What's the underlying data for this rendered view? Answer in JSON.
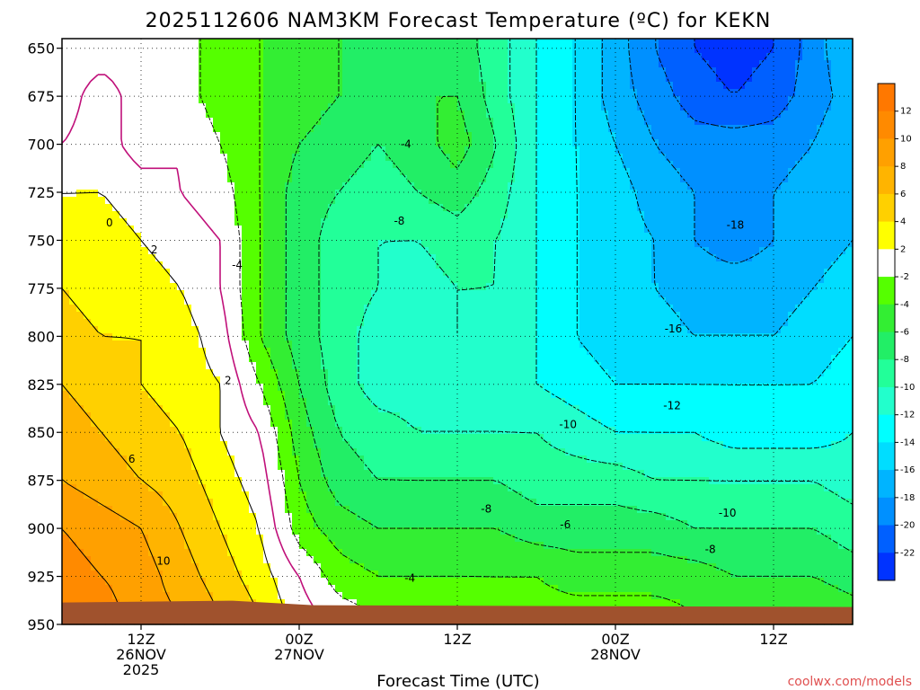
{
  "chart_data": {
    "type": "heatmap",
    "subtype": "filled-contour time-height cross section",
    "title": "2025112606 NAM3KM Forecast Temperature (ºC) for KEKN",
    "xlabel": "Forecast Time (UTC)",
    "ylabel": "",
    "x_axis": {
      "units": "hours since 2025-11-26 00Z",
      "xlim": [
        6,
        66
      ],
      "ticks": [
        {
          "x": 12,
          "lines": [
            "12Z",
            "26NOV",
            "2025"
          ]
        },
        {
          "x": 24,
          "lines": [
            "00Z",
            "27NOV"
          ]
        },
        {
          "x": 36,
          "lines": [
            "12Z"
          ]
        },
        {
          "x": 48,
          "lines": [
            "00Z",
            "28NOV"
          ]
        },
        {
          "x": 60,
          "lines": [
            "12Z"
          ]
        }
      ]
    },
    "y_axis": {
      "units": "hPa",
      "ylim": [
        950,
        645
      ],
      "ticks": [
        650,
        675,
        700,
        725,
        750,
        775,
        800,
        825,
        850,
        875,
        900,
        925,
        950
      ]
    },
    "colorbar": {
      "units": "ºC",
      "ticks": [
        "12",
        "10",
        "8",
        "6",
        "4",
        "2",
        "-2",
        "-4",
        "-6",
        "-8",
        "-10",
        "-12",
        "-14",
        "-16",
        "-18",
        "-20",
        "-22"
      ],
      "bins": [
        {
          "lo": 12,
          "hi": 14,
          "color": "#ff7800"
        },
        {
          "lo": 10,
          "hi": 12,
          "color": "#ff8a00"
        },
        {
          "lo": 8,
          "hi": 10,
          "color": "#ffa000"
        },
        {
          "lo": 6,
          "hi": 8,
          "color": "#ffb400"
        },
        {
          "lo": 4,
          "hi": 6,
          "color": "#ffd000"
        },
        {
          "lo": 2,
          "hi": 4,
          "color": "#ffff00"
        },
        {
          "lo": -2,
          "hi": 2,
          "color": "#ffffff"
        },
        {
          "lo": -4,
          "hi": -2,
          "color": "#55ff00"
        },
        {
          "lo": -6,
          "hi": -4,
          "color": "#33ee33"
        },
        {
          "lo": -8,
          "hi": -6,
          "color": "#22ee66"
        },
        {
          "lo": -10,
          "hi": -8,
          "color": "#22ff99"
        },
        {
          "lo": -12,
          "hi": -10,
          "color": "#22ffcc"
        },
        {
          "lo": -14,
          "hi": -12,
          "color": "#00ffff"
        },
        {
          "lo": -16,
          "hi": -14,
          "color": "#00ddff"
        },
        {
          "lo": -18,
          "hi": -16,
          "color": "#00b4ff"
        },
        {
          "lo": -20,
          "hi": -18,
          "color": "#0090ff"
        },
        {
          "lo": -22,
          "hi": -20,
          "color": "#0060ff"
        },
        {
          "lo": -24,
          "hi": -22,
          "color": "#0033ff"
        }
      ]
    },
    "temperature_grid": {
      "times": [
        6,
        9,
        12,
        15,
        18,
        21,
        24,
        27,
        30,
        33,
        36,
        39,
        42,
        45,
        48,
        51,
        54,
        57,
        60,
        63,
        66
      ],
      "levels": [
        650,
        675,
        700,
        725,
        750,
        775,
        800,
        825,
        850,
        875,
        900,
        925,
        945
      ],
      "values": [
        [
          -1,
          -1,
          -1,
          -1,
          -3,
          -4,
          -5,
          -6,
          -7,
          -7,
          -7,
          -9,
          -12,
          -14,
          -17,
          -20,
          -22,
          -23,
          -22,
          -19,
          -16
        ],
        [
          -1,
          1,
          -1,
          -1,
          -3,
          -4,
          -5,
          -6,
          -7,
          -6,
          -6,
          -9,
          -12,
          -14,
          -17,
          -19,
          -21,
          -22,
          -21,
          -19,
          -17
        ],
        [
          0,
          1,
          -1,
          0,
          -2,
          -4,
          -6,
          -7,
          -8,
          -7,
          -5,
          -8,
          -12,
          -14,
          -16,
          -18,
          -19,
          -19,
          -19,
          -18,
          -16
        ],
        [
          2,
          2,
          1,
          0,
          -1,
          -4,
          -7,
          -8,
          -9,
          -8,
          -7,
          -9,
          -12,
          -14,
          -15,
          -17,
          -18,
          -19,
          -18,
          -17,
          -16
        ],
        [
          3,
          3,
          2,
          1,
          0,
          -4,
          -7,
          -9,
          -10,
          -10,
          -9,
          -10,
          -12,
          -14,
          -15,
          -16,
          -18,
          -19,
          -18,
          -17,
          -16
        ],
        [
          4,
          3,
          3,
          2,
          0,
          -4,
          -7,
          -9,
          -10,
          -11,
          -10,
          -10,
          -12,
          -14,
          -15,
          -16,
          -17,
          -17,
          -17,
          -16,
          -15
        ],
        [
          5,
          4,
          4,
          3,
          1,
          -4,
          -7,
          -9,
          -11,
          -11,
          -10,
          -11,
          -12,
          -14,
          -15,
          -15,
          -16,
          -16,
          -16,
          -15,
          -14
        ],
        [
          6,
          5,
          4,
          3,
          2,
          -2,
          -6,
          -9,
          -11,
          -11,
          -11,
          -11,
          -12,
          -13,
          -14,
          -14,
          -14,
          -14,
          -14,
          -14,
          -13
        ],
        [
          7,
          6,
          5,
          4,
          2,
          0,
          -5,
          -8,
          -9,
          -10,
          -10,
          -10,
          -10,
          -11,
          -12,
          -12,
          -12,
          -13,
          -13,
          -13,
          -12
        ],
        [
          8,
          7,
          6,
          5,
          3,
          1,
          -4,
          -7,
          -8,
          -8,
          -8,
          -8,
          -9,
          -9,
          -9,
          -10,
          -10,
          -10,
          -10,
          -10,
          -11
        ],
        [
          10,
          9,
          8,
          6,
          4,
          2,
          -3,
          -5,
          -6,
          -6,
          -6,
          -6,
          -7,
          -7,
          -7,
          -7,
          -8,
          -8,
          -8,
          -8,
          -9
        ],
        [
          11,
          10,
          9,
          7,
          5,
          3,
          0,
          -3,
          -4,
          -4,
          -4,
          -4,
          -4,
          -5,
          -5,
          -5,
          -5,
          -6,
          -6,
          -6,
          -7
        ],
        [
          11,
          11,
          9,
          8,
          6,
          4,
          1,
          -1,
          -2,
          -2,
          -2,
          -3,
          -3,
          -3,
          -3,
          -3,
          -4,
          -4,
          -4,
          -4,
          -5
        ]
      ]
    },
    "contour_labels": [
      {
        "text": "0",
        "x": 9.6,
        "p": 741
      },
      {
        "text": "2",
        "x": 13.0,
        "p": 755
      },
      {
        "text": "2",
        "x": 18.6,
        "p": 823
      },
      {
        "text": "6",
        "x": 11.3,
        "p": 864
      },
      {
        "text": "10",
        "x": 13.7,
        "p": 917
      },
      {
        "text": "-4",
        "x": 19.3,
        "p": 763
      },
      {
        "text": "-4",
        "x": 32.1,
        "p": 700
      },
      {
        "text": "-8",
        "x": 31.6,
        "p": 740
      },
      {
        "text": "-4",
        "x": 32.4,
        "p": 926
      },
      {
        "text": "-8",
        "x": 38.2,
        "p": 890
      },
      {
        "text": "-6",
        "x": 44.2,
        "p": 898
      },
      {
        "text": "-10",
        "x": 44.4,
        "p": 846
      },
      {
        "text": "-12",
        "x": 52.3,
        "p": 836
      },
      {
        "text": "-16",
        "x": 52.4,
        "p": 796
      },
      {
        "text": "-18",
        "x": 57.1,
        "p": 742
      },
      {
        "text": "-10",
        "x": 56.5,
        "p": 892
      },
      {
        "text": "-8",
        "x": 55.2,
        "p": 911
      }
    ],
    "ground_level_hpa": 940,
    "ground_color": "#a0522d",
    "credit": "coolwx.com/models"
  }
}
